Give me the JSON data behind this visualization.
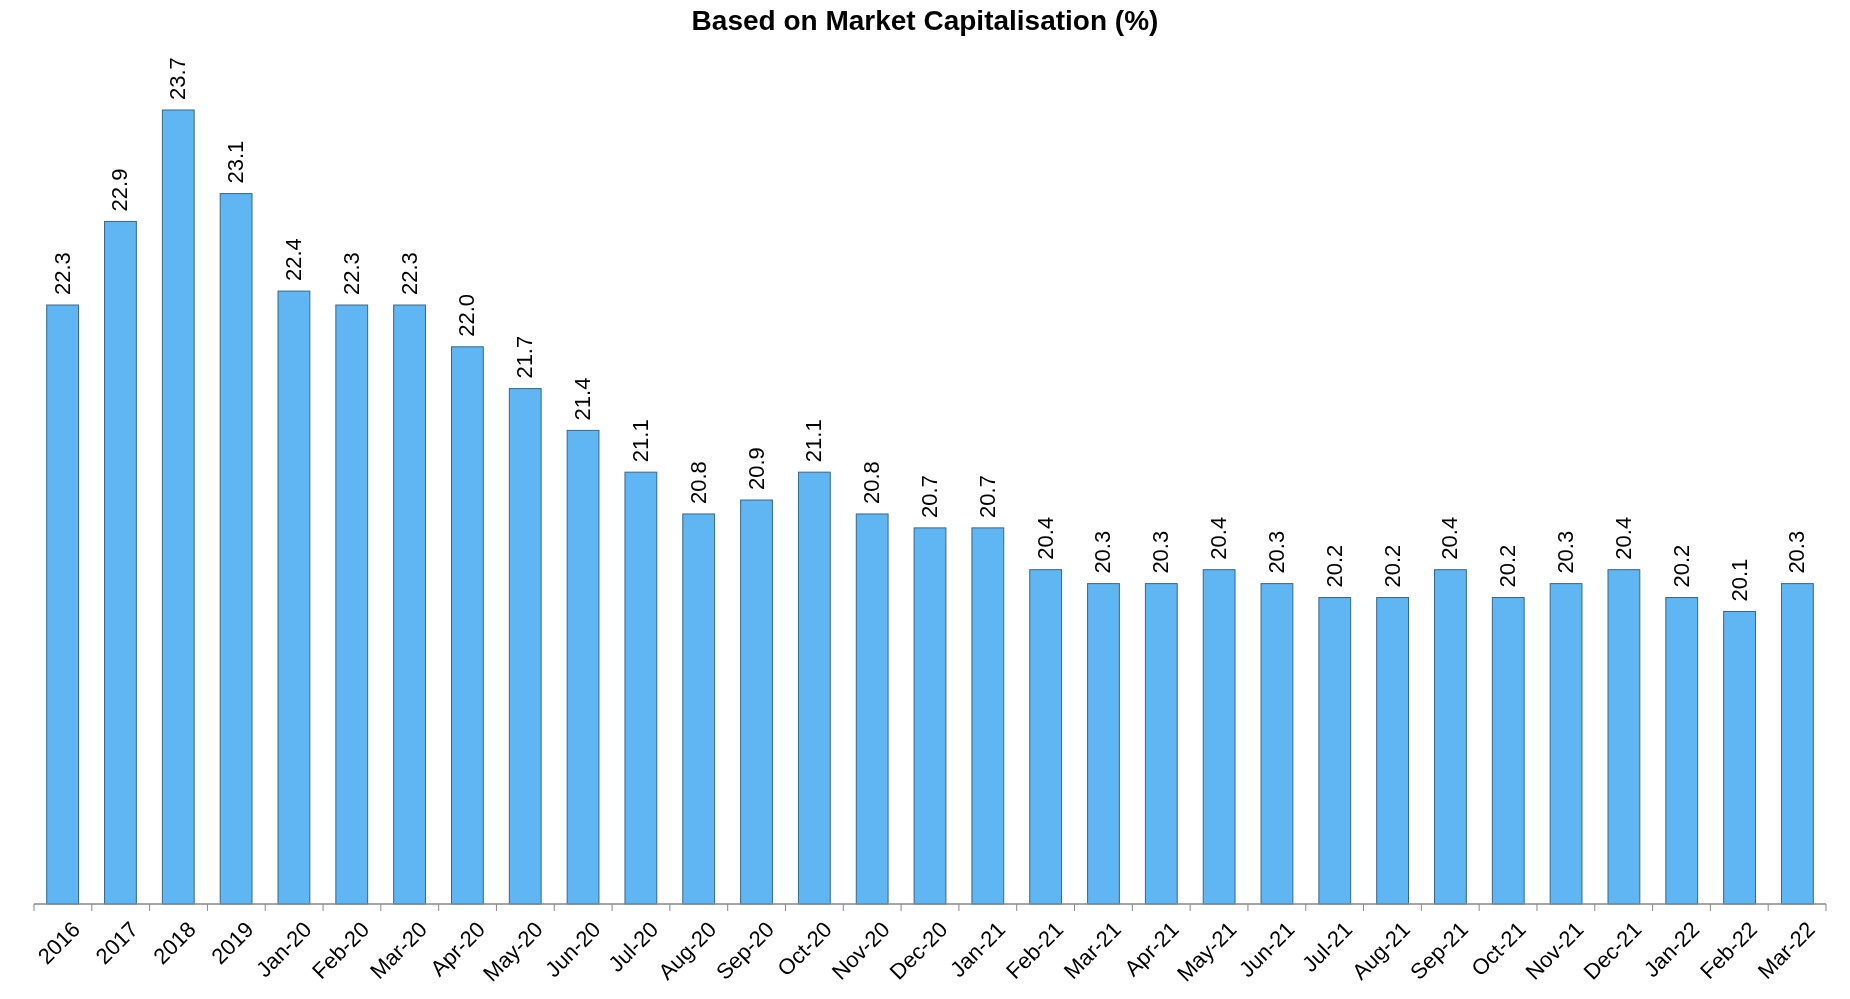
{
  "chart_data": {
    "type": "bar",
    "title": "Based on Market Capitalisation (%)",
    "categories": [
      "2016",
      "2017",
      "2018",
      "2019",
      "Jan-20",
      "Feb-20",
      "Mar-20",
      "Apr-20",
      "May-20",
      "Jun-20",
      "Jul-20",
      "Aug-20",
      "Sep-20",
      "Oct-20",
      "Nov-20",
      "Dec-20",
      "Jan-21",
      "Feb-21",
      "Mar-21",
      "Apr-21",
      "May-21",
      "Jun-21",
      "Jul-21",
      "Aug-21",
      "Sep-21",
      "Oct-21",
      "Nov-21",
      "Dec-21",
      "Jan-22",
      "Feb-22",
      "Mar-22"
    ],
    "values": [
      22.3,
      22.9,
      23.7,
      23.1,
      22.4,
      22.3,
      22.3,
      22.0,
      21.7,
      21.4,
      21.1,
      20.8,
      20.9,
      21.1,
      20.8,
      20.7,
      20.7,
      20.4,
      20.3,
      20.3,
      20.4,
      20.3,
      20.2,
      20.2,
      20.4,
      20.2,
      20.3,
      20.4,
      20.2,
      20.1,
      20.3
    ],
    "value_labels": [
      "22.3",
      "22.9",
      "23.7",
      "23.1",
      "22.4",
      "22.3",
      "22.3",
      "22.0",
      "21.7",
      "21.4",
      "21.1",
      "20.8",
      "20.9",
      "21.1",
      "20.8",
      "20.7",
      "20.7",
      "20.4",
      "20.3",
      "20.3",
      "20.4",
      "20.3",
      "20.2",
      "20.2",
      "20.4",
      "20.2",
      "20.3",
      "20.4",
      "20.2",
      "20.1",
      "20.3"
    ],
    "color": "#5fb6f2",
    "ylim": [
      18,
      23.7
    ],
    "tick_labels": "x"
  }
}
